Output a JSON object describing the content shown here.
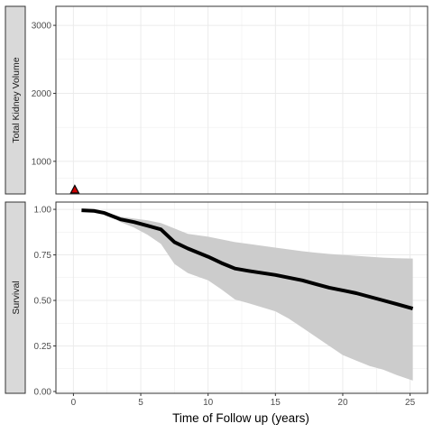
{
  "chart_data": [
    {
      "type": "scatter",
      "strip_label": "Total Kidney Volume",
      "ylim": [
        520,
        3280
      ],
      "y_ticks": [
        1000,
        2000,
        3000
      ],
      "xlim": [
        -1.3,
        26.3
      ],
      "x_ticks": [
        0,
        5,
        10,
        15,
        20,
        25
      ],
      "grid": true,
      "colors": {
        "fill": "#cc0000",
        "stroke": "#000000"
      },
      "points": [
        {
          "x": 0.1,
          "y": 580,
          "shape": "triangle"
        }
      ]
    },
    {
      "type": "line",
      "strip_label": "Survival",
      "ylim": [
        -0.01,
        1.04
      ],
      "y_ticks": [
        0.0,
        0.25,
        0.5,
        0.75,
        1.0
      ],
      "y_tick_labels": [
        "0.00",
        "0.25",
        "0.50",
        "0.75",
        "1.00"
      ],
      "xlim": [
        -1.3,
        26.3
      ],
      "x_ticks": [
        0,
        5,
        10,
        15,
        20,
        25
      ],
      "x_tick_labels": [
        "0",
        "5",
        "10",
        "15",
        "20",
        "25"
      ],
      "xlabel": "Time of Follow up (years)",
      "grid": true,
      "colors": {
        "line": "#000000",
        "band": "#cccccc"
      },
      "series": [
        {
          "x": [
            0.6,
            1.5,
            2.3,
            3.0,
            3.5,
            4.5,
            5.5,
            6.5,
            7.5,
            8.5,
            10,
            11,
            12,
            13,
            15,
            16,
            17,
            18,
            19,
            20,
            21,
            22,
            23,
            24,
            25.2
          ],
          "y": [
            0.995,
            0.992,
            0.98,
            0.96,
            0.945,
            0.93,
            0.91,
            0.89,
            0.82,
            0.785,
            0.74,
            0.705,
            0.675,
            0.662,
            0.64,
            0.625,
            0.61,
            0.59,
            0.57,
            0.555,
            0.54,
            0.52,
            0.5,
            0.48,
            0.455
          ],
          "lower": [
            0.995,
            0.99,
            0.975,
            0.95,
            0.93,
            0.9,
            0.86,
            0.81,
            0.7,
            0.65,
            0.61,
            0.56,
            0.505,
            0.485,
            0.44,
            0.4,
            0.35,
            0.3,
            0.25,
            0.2,
            0.17,
            0.14,
            0.12,
            0.09,
            0.06
          ],
          "upper": [
            0.995,
            0.995,
            0.985,
            0.97,
            0.96,
            0.95,
            0.94,
            0.925,
            0.895,
            0.865,
            0.85,
            0.835,
            0.82,
            0.81,
            0.79,
            0.78,
            0.77,
            0.762,
            0.755,
            0.75,
            0.745,
            0.74,
            0.735,
            0.732,
            0.73
          ]
        }
      ]
    }
  ]
}
